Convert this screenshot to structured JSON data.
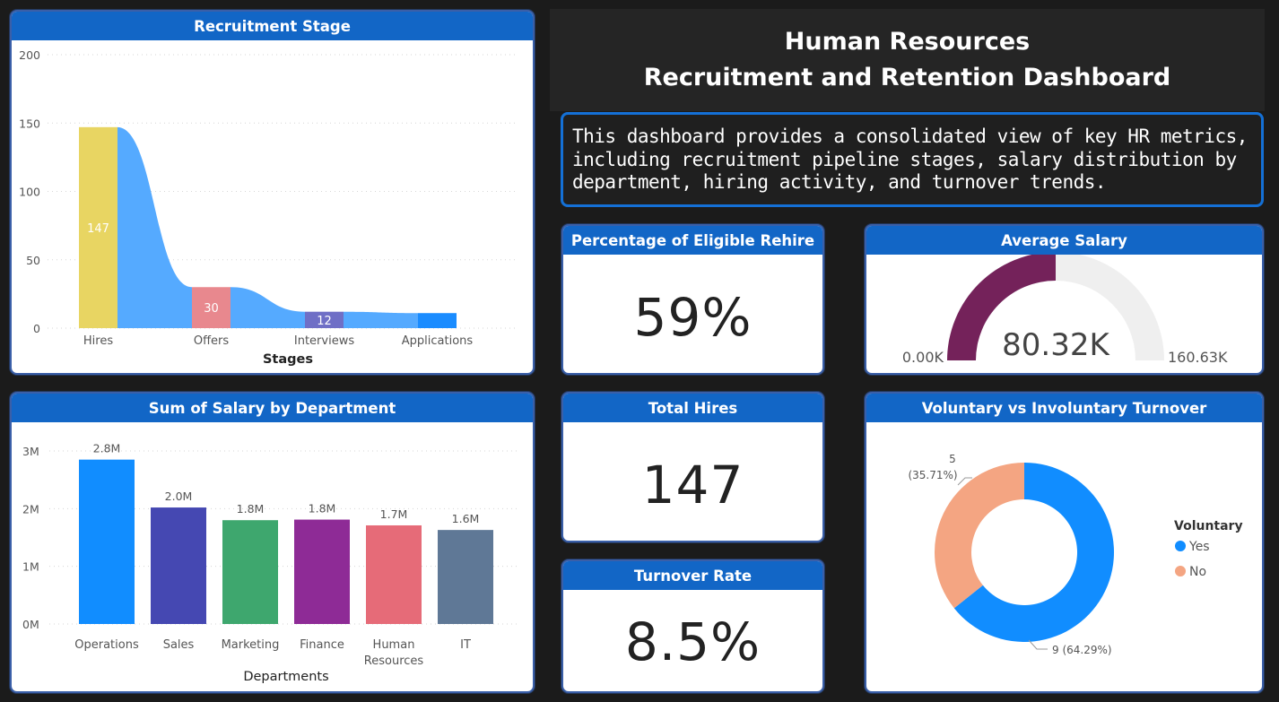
{
  "header": {
    "title_line1": "Human Resources",
    "title_line2": "Recruitment and Retention Dashboard",
    "description": "This dashboard provides a consolidated view of key HR metrics, including recruitment pipeline stages, salary distribution by department, hiring activity, and turnover trends."
  },
  "kpis": {
    "rehire": {
      "title": "Percentage of Eligible Rehire",
      "value": "59%"
    },
    "hires": {
      "title": "Total Hires",
      "value": "147"
    },
    "turnover": {
      "title": "Turnover Rate",
      "value": "8.5%"
    }
  },
  "chart_data": [
    {
      "id": "recruitment",
      "type": "bar",
      "title": "Recruitment Stage",
      "xlabel": "Stages",
      "ylabel": "",
      "categories": [
        "Hires",
        "Offers",
        "Interviews",
        "Applications"
      ],
      "values": [
        147,
        30,
        12,
        11
      ],
      "data_labels": [
        "147",
        "30",
        "12",
        ""
      ],
      "ylim": [
        0,
        200
      ],
      "yticks": [
        0,
        50,
        100,
        150,
        200
      ],
      "ytick_labels": [
        "0",
        "50",
        "100",
        "150",
        "200"
      ],
      "colors": [
        "#e8d562",
        "#e8888e",
        "#6f6fc6",
        "#1a8cff"
      ],
      "ribbon_color": "#55aaff",
      "grid": true
    },
    {
      "id": "salary",
      "type": "bar",
      "title": "Sum of Salary by Department",
      "xlabel": "Departments",
      "ylabel": "",
      "categories": [
        "Operations",
        "Sales",
        "Marketing",
        "Finance",
        "Human Resources",
        "IT"
      ],
      "category_lines": [
        [
          "Operations"
        ],
        [
          "Sales"
        ],
        [
          "Marketing"
        ],
        [
          "Finance"
        ],
        [
          "Human",
          "Resources"
        ],
        [
          "IT"
        ]
      ],
      "values": [
        2.85,
        2.02,
        1.8,
        1.81,
        1.71,
        1.63
      ],
      "data_labels": [
        "2.8M",
        "2.0M",
        "1.8M",
        "1.8M",
        "1.7M",
        "1.6M"
      ],
      "ylim": [
        0,
        3
      ],
      "yticks": [
        0,
        1,
        2,
        3
      ],
      "ytick_labels": [
        "0M",
        "1M",
        "2M",
        "3M"
      ],
      "colors": [
        "#118dff",
        "#4548b2",
        "#3ea76e",
        "#8e2b96",
        "#e66b78",
        "#5f7896"
      ],
      "grid": true
    },
    {
      "id": "gauge",
      "type": "gauge",
      "title": "Average Salary",
      "value": 80.32,
      "min": 0,
      "max": 160.63,
      "value_label": "80.32K",
      "min_label": "0.00K",
      "max_label": "160.63K",
      "fill_color": "#74225a",
      "track_color": "#efefef"
    },
    {
      "id": "turnover",
      "type": "pie",
      "title": "Voluntary vs Involuntary Turnover",
      "legend_title": "Voluntary",
      "legend_position": "right",
      "slices": [
        {
          "name": "Yes",
          "value": 9,
          "label": "9 (64.29%)",
          "color": "#118dff"
        },
        {
          "name": "No",
          "value": 5,
          "label_line1": "5",
          "label_line2": "(35.71%)",
          "color": "#f4a582"
        }
      ]
    }
  ]
}
